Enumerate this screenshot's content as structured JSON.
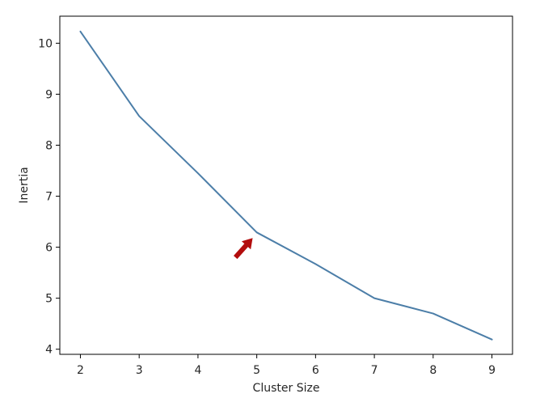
{
  "chart_data": {
    "type": "line",
    "title": "",
    "xlabel": "Cluster Size",
    "ylabel": "Inertia",
    "x": [
      2,
      3,
      4,
      5,
      6,
      7,
      8,
      9
    ],
    "series": [
      {
        "values": [
          10.23,
          8.57,
          7.45,
          6.29,
          5.67,
          5.0,
          4.7,
          4.19
        ],
        "color": "#4c7ea8"
      }
    ],
    "xticks": [
      "2",
      "3",
      "4",
      "5",
      "6",
      "7",
      "8",
      "9"
    ],
    "yticks": [
      "4",
      "5",
      "6",
      "7",
      "8",
      "9",
      "10"
    ],
    "xlim": [
      1.65,
      9.35
    ],
    "ylim": [
      3.9,
      10.53
    ],
    "grid": false,
    "annotation": {
      "type": "arrow",
      "points_to": {
        "x": 4.93,
        "y": 6.18
      },
      "color": "#b30d0d"
    }
  }
}
